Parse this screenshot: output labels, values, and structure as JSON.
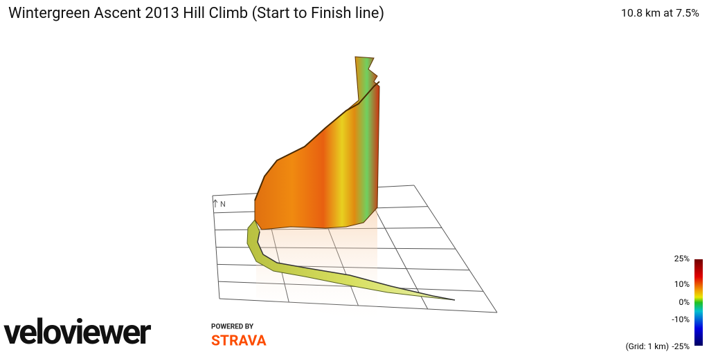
{
  "header": {
    "title": "Wintergreen Ascent 2013 Hill Climb (Start to Finish line)",
    "stats": "10.8 km at 7.5%"
  },
  "compass": "N",
  "legend": {
    "labels": [
      "25%",
      "10%",
      "0%",
      "-10%",
      "-25%"
    ],
    "grid_note": "(Grid: 1 km)"
  },
  "branding": {
    "logo": "veloviewer",
    "powered_by": "POWERED BY",
    "partner": "STRAVA"
  }
}
